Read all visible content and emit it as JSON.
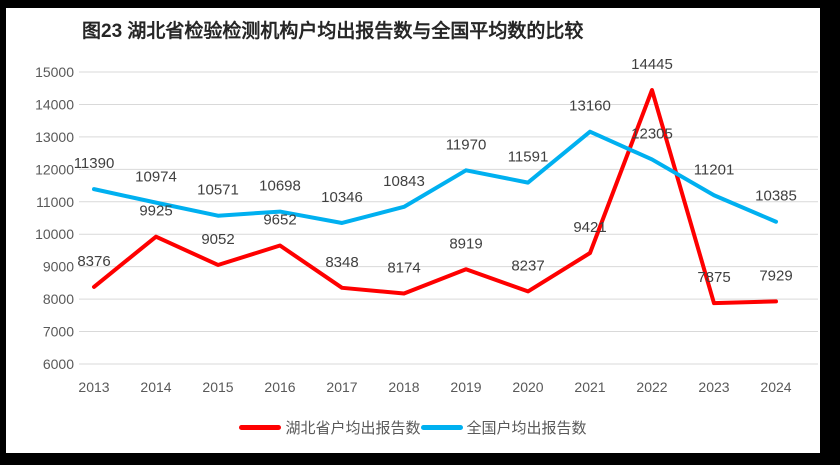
{
  "chart_data": {
    "type": "line",
    "title": "图23 湖北省检验检测机构户均出报告数与全国平均数的比较",
    "categories": [
      "2013",
      "2014",
      "2015",
      "2016",
      "2017",
      "2018",
      "2019",
      "2020",
      "2021",
      "2022",
      "2023",
      "2024"
    ],
    "series": [
      {
        "name": "湖北省户均出报告数",
        "color": "#fe0000",
        "values": [
          8376,
          9925,
          9052,
          9652,
          8348,
          8174,
          8919,
          8237,
          9421,
          14445,
          7875,
          7929
        ]
      },
      {
        "name": "全国户均出报告数",
        "color": "#00b0f0",
        "values": [
          11390,
          10974,
          10571,
          10698,
          10346,
          10843,
          11970,
          11591,
          13160,
          12305,
          11201,
          10385
        ]
      }
    ],
    "ylim": [
      6000,
      15000
    ],
    "yticks": [
      6000,
      7000,
      8000,
      9000,
      10000,
      11000,
      12000,
      13000,
      14000,
      15000
    ],
    "xlabel": "",
    "ylabel": "",
    "grid": "horizontal",
    "legend_position": "bottom",
    "data_labels": "above"
  },
  "colors": {
    "gridline": "#d9d9d9",
    "axis_label": "#595959",
    "data_label": "#404040",
    "title": "#262626",
    "frame": "#000000",
    "background": "#ffffff"
  }
}
